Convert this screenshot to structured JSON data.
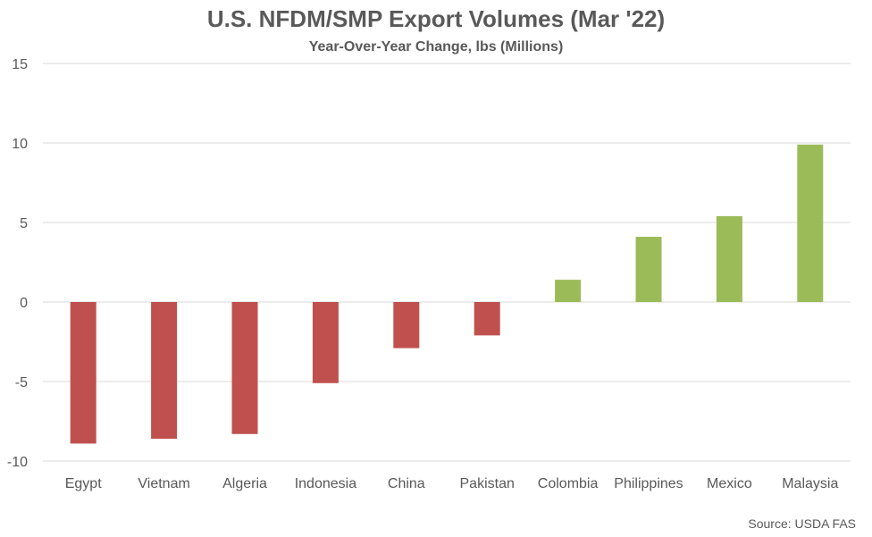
{
  "chart_data": {
    "type": "bar",
    "title": "U.S. NFDM/SMP Export Volumes (Mar '22)",
    "subtitle": "Year-Over-Year Change, lbs (Millions)",
    "categories": [
      "Egypt",
      "Vietnam",
      "Algeria",
      "Indonesia",
      "China",
      "Pakistan",
      "Colombia",
      "Philippines",
      "Mexico",
      "Malaysia"
    ],
    "values": [
      -8.9,
      -8.6,
      -8.3,
      -5.1,
      -2.9,
      -2.1,
      1.4,
      4.1,
      5.4,
      9.9
    ],
    "ylim": [
      -10,
      15
    ],
    "yticks": [
      15,
      10,
      5,
      0,
      -5,
      -10
    ],
    "grid": true,
    "colors": {
      "negative": "#c0504d",
      "positive": "#9bbb59",
      "grid": "#d9d9d9"
    }
  },
  "source": "Source: USDA FAS"
}
